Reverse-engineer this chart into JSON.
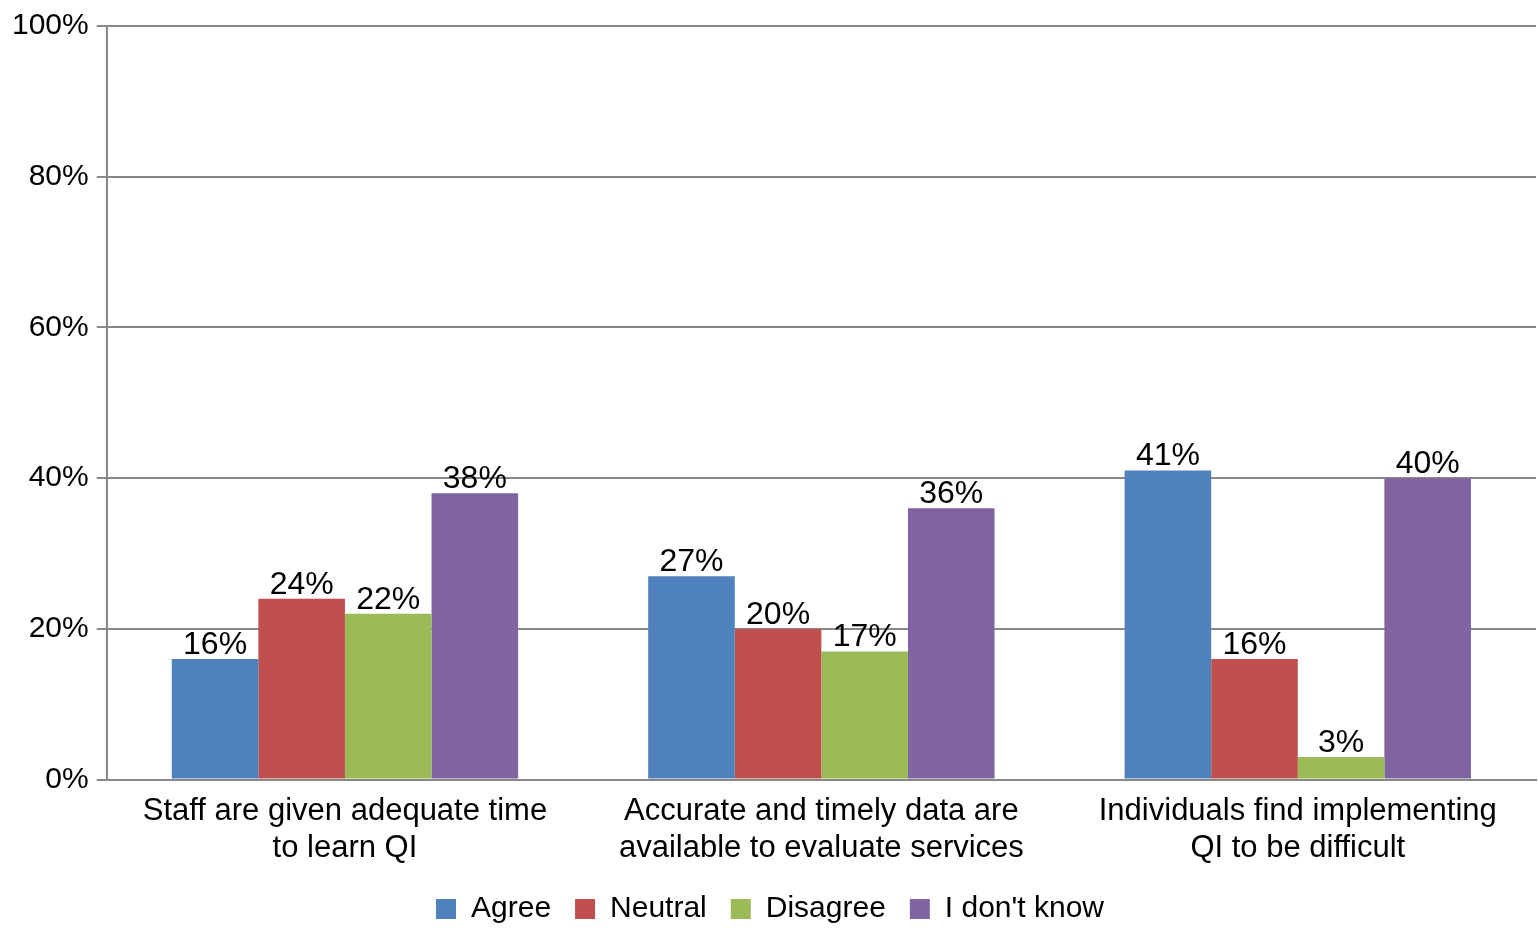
{
  "chart_data": {
    "type": "bar",
    "categories": [
      "Staff are given adequate time\nto learn QI",
      "Accurate and timely data are\navailable to evaluate services",
      "Individuals find implementing\nQI to be difficult"
    ],
    "series": [
      {
        "name": "Agree",
        "color": "#4f81bd",
        "values": [
          16,
          27,
          41
        ],
        "value_labels": [
          "16%",
          "27%",
          "41%"
        ]
      },
      {
        "name": "Neutral",
        "color": "#c0504d",
        "values": [
          24,
          20,
          16
        ],
        "value_labels": [
          "24%",
          "20%",
          "16%"
        ]
      },
      {
        "name": "Disagree",
        "color": "#9bbb59",
        "values": [
          22,
          17,
          3
        ],
        "value_labels": [
          "22%",
          "17%",
          "3%"
        ]
      },
      {
        "name": "I don't know",
        "color": "#8064a2",
        "values": [
          38,
          36,
          40
        ],
        "value_labels": [
          "38%",
          "36%",
          "40%"
        ]
      }
    ],
    "ylim": [
      0,
      100
    ],
    "yticks": [
      {
        "value": 0,
        "label": "0%"
      },
      {
        "value": 20,
        "label": "20%"
      },
      {
        "value": 40,
        "label": "40%"
      },
      {
        "value": 60,
        "label": "60%"
      },
      {
        "value": 80,
        "label": "80%"
      },
      {
        "value": 100,
        "label": "100%"
      }
    ],
    "grid": "y",
    "legend": "bottom"
  }
}
